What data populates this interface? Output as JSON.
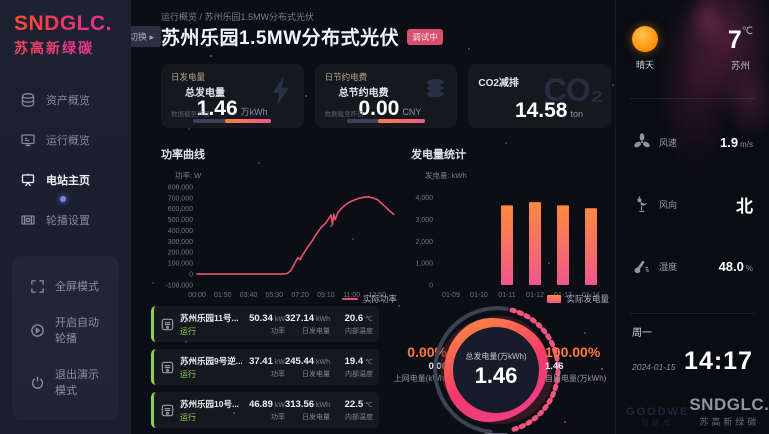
{
  "app": {
    "accent_orange": "#ff7a3c",
    "accent_pink": "#f0568d",
    "status_green": "#8fd14f",
    "line_red": "#e8546f"
  },
  "sidebar": {
    "logo": "SNDGLC.",
    "logo_sub": "苏高新绿碳",
    "menu": [
      {
        "label": "资产概览",
        "icon": "assets-icon",
        "active": false
      },
      {
        "label": "运行概览",
        "icon": "operation-icon",
        "active": false
      },
      {
        "label": "电站主页",
        "icon": "station-icon",
        "active": true
      },
      {
        "label": "轮播设置",
        "icon": "carousel-icon",
        "active": false
      }
    ],
    "footer": [
      {
        "label": "全屏模式",
        "icon": "fullscreen-icon"
      },
      {
        "label": "开启自动轮播",
        "icon": "autoplay-icon"
      },
      {
        "label": "退出演示模式",
        "icon": "power-icon"
      }
    ]
  },
  "header": {
    "breadcrumb": "运行概览 / 苏州乐园1.5MW分布式光伏",
    "switch_label": "切换",
    "switch_arrow": "▸",
    "title": "苏州乐园1.5MW分布式光伏",
    "badge": "调试中"
  },
  "stat_cards": [
    {
      "tab": "日发电量",
      "label": "总发电量",
      "value": "1.46",
      "unit": "万kWh",
      "note": "数据截至昨日",
      "icon": "bolt-icon"
    },
    {
      "tab": "日节约电费",
      "label": "总节约电费",
      "value": "0.00",
      "unit": "CNY",
      "note": "数据截至昨日",
      "icon": "coins-icon"
    },
    {
      "label": "CO2减排",
      "value": "14.58",
      "unit": "ton",
      "watermark": "CO₂",
      "icon": "co2-watermark"
    }
  ],
  "chart_data": [
    {
      "type": "line",
      "title": "功率曲线",
      "ylabel": "功率: W",
      "legend": "实际功率",
      "line_color": "#e8546f",
      "x_ticks": [
        "00:00",
        "01:50",
        "03:40",
        "05:30",
        "07:20",
        "09:10",
        "11:00",
        "12:50"
      ],
      "x_tick_values": [
        0,
        110,
        220,
        330,
        440,
        550,
        660,
        770
      ],
      "x_range": [
        0,
        845
      ],
      "y_tick_values": [
        -100000,
        0,
        100000,
        200000,
        300000,
        400000,
        500000,
        600000,
        700000,
        800000
      ],
      "y_range": [
        -100000,
        800000
      ],
      "series": [
        {
          "name": "实际功率",
          "points": [
            [
              0,
              0
            ],
            [
              40,
              0
            ],
            [
              80,
              0
            ],
            [
              120,
              0
            ],
            [
              160,
              0
            ],
            [
              200,
              0
            ],
            [
              240,
              0
            ],
            [
              280,
              0
            ],
            [
              320,
              0
            ],
            [
              360,
              0
            ],
            [
              385,
              6000
            ],
            [
              400,
              30000
            ],
            [
              415,
              90000
            ],
            [
              430,
              150000
            ],
            [
              440,
              134000
            ],
            [
              455,
              190000
            ],
            [
              470,
              240000
            ],
            [
              490,
              300000
            ],
            [
              510,
              370000
            ],
            [
              530,
              430000
            ],
            [
              550,
              470000
            ],
            [
              565,
              520000
            ],
            [
              572,
              545000
            ],
            [
              578,
              455000
            ],
            [
              584,
              550000
            ],
            [
              590,
              500000
            ],
            [
              600,
              560000
            ],
            [
              615,
              600000
            ],
            [
              630,
              630000
            ],
            [
              650,
              660000
            ],
            [
              670,
              680000
            ],
            [
              690,
              695000
            ],
            [
              710,
              705000
            ],
            [
              730,
              710000
            ],
            [
              750,
              700000
            ],
            [
              770,
              685000
            ],
            [
              790,
              645000
            ],
            [
              810,
              605000
            ],
            [
              825,
              575000
            ],
            [
              840,
              548000
            ]
          ]
        }
      ]
    },
    {
      "type": "bar",
      "title": "发电量统计",
      "ylabel": "发电量: kWh",
      "legend": "实际发电量",
      "categories": [
        "01-09",
        "01-10",
        "01-11",
        "01-12",
        "01-13",
        "01-14"
      ],
      "values": [
        0,
        0,
        3650,
        3800,
        3650,
        3520
      ],
      "y_tick_values": [
        0,
        1000,
        2000,
        3000,
        4000
      ],
      "y_range": [
        0,
        4400
      ],
      "bar_gradient": [
        "#ff8a3d",
        "#f0568d"
      ]
    }
  ],
  "devices": {
    "labels": {
      "power": "功率",
      "daily": "日发电量",
      "temp": "内部温度"
    },
    "rows": [
      {
        "name": "苏州乐园11号...",
        "status": "运行",
        "power": "50.34",
        "power_unit": "kW",
        "daily": "327.14",
        "daily_unit": "kWh",
        "temp": "20.6",
        "temp_unit": "℃"
      },
      {
        "name": "苏州乐园9号逆...",
        "status": "运行",
        "power": "37.41",
        "power_unit": "kW",
        "daily": "245.44",
        "daily_unit": "kWh",
        "temp": "19.4",
        "temp_unit": "℃"
      },
      {
        "name": "苏州乐园10号...",
        "status": "运行",
        "power": "46.89",
        "power_unit": "kW",
        "daily": "313.56",
        "daily_unit": "kWh",
        "temp": "22.5",
        "temp_unit": "℃"
      }
    ]
  },
  "gauge": {
    "center_label": "总发电量(万kWh)",
    "center_value": "1.46",
    "left_percent": "0.00%",
    "left_value": "0.00",
    "left_label": "上网电量(kWh)",
    "right_percent": "100.00%",
    "right_value": "1.46",
    "right_label": "自用电量(万kWh)"
  },
  "weather": {
    "condition": "晴天",
    "temperature": "7",
    "temp_unit": "℃",
    "city": "苏州",
    "items": [
      {
        "label": "风速",
        "value": "1.9",
        "unit": "m/s",
        "icon": "fan-icon"
      },
      {
        "label": "风向",
        "value": "北",
        "unit": "",
        "icon": "weathervane-icon"
      },
      {
        "label": "湿度",
        "value": "48.0",
        "unit": "%",
        "icon": "thermometer-icon"
      }
    ]
  },
  "clock": {
    "weekday": "周一",
    "date": "2024-01-15",
    "time": "14:17"
  },
  "logos": {
    "goodwe": "GOODWE",
    "goodwe_sub": "固德威",
    "sndglc": "SNDGLC.",
    "sndglc_sub": "苏高新绿碳"
  }
}
